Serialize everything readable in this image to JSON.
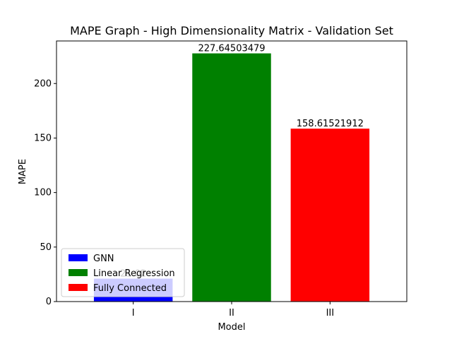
{
  "chart_data": {
    "type": "bar",
    "title": "MAPE Graph - High Dimensionality Matrix - Validation Set",
    "xlabel": "Model",
    "ylabel": "MAPE",
    "categories": [
      "I",
      "II",
      "III"
    ],
    "values": [
      21.02,
      227.64503479,
      158.61521912
    ],
    "data_labels": [
      "21.02",
      "227.64503479",
      "158.61521912"
    ],
    "colors": [
      "#0000ff",
      "#008000",
      "#ff0000"
    ],
    "ylim": [
      0,
      239.03
    ],
    "yticks": [
      0,
      50,
      100,
      150,
      200
    ],
    "grid": false,
    "legend": {
      "placement": "lower-left",
      "entries": [
        {
          "label": "GNN",
          "color": "#0000ff"
        },
        {
          "label": "Linear Regression",
          "color": "#008000"
        },
        {
          "label": "Fully Connected",
          "color": "#ff0000"
        }
      ]
    }
  }
}
